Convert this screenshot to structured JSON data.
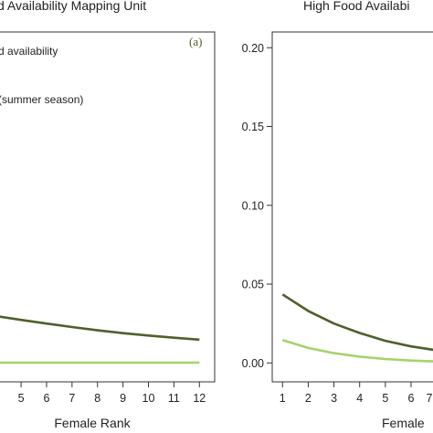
{
  "colors": {
    "dark_green": "#4f5f2c",
    "light_green": "#a6d36a",
    "axis": "#333333"
  },
  "chart_data": [
    {
      "type": "line",
      "title": "d Availability Mapping Unit",
      "panel_label": "(a)",
      "legend": [
        {
          "text": "d availability"
        },
        {
          "text": "(summer season)"
        }
      ],
      "xlabel": "Female Rank",
      "ylabel": "",
      "xlim": [
        4.1,
        12.6
      ],
      "ylim": [
        -0.012,
        0.21
      ],
      "x_ticks": [
        5,
        6,
        7,
        8,
        9,
        10,
        11,
        12
      ],
      "x_tick_labels": [
        "5",
        "6",
        "7",
        "8",
        "9",
        "10",
        "11",
        "12"
      ],
      "x_edge_label": "",
      "y_ticks": [],
      "y_tick_labels": [],
      "grid": false,
      "series": [
        {
          "color_key": "dark_green",
          "x": [
            4.1,
            5,
            6,
            7,
            8,
            9,
            10,
            11,
            12
          ],
          "y": [
            0.0295,
            0.0273,
            0.025,
            0.0228,
            0.0207,
            0.0189,
            0.0174,
            0.016,
            0.0148
          ]
        },
        {
          "color_key": "light_green",
          "x": [
            4.1,
            5,
            6,
            7,
            8,
            9,
            10,
            11,
            12
          ],
          "y": [
            0.0002,
            0.0002,
            0.0002,
            0.0002,
            0.0002,
            0.0002,
            0.0002,
            0.0002,
            0.0002
          ]
        }
      ]
    },
    {
      "type": "line",
      "title": "High Food Availabi",
      "xlabel": "Female",
      "ylabel": "",
      "xlim": [
        0.6,
        7.35
      ],
      "ylim": [
        -0.012,
        0.21
      ],
      "x_ticks": [
        1,
        2,
        3,
        4,
        5,
        6
      ],
      "x_tick_labels": [
        "1",
        "2",
        "3",
        "4",
        "5",
        "6"
      ],
      "x_edge_label": "7",
      "y_ticks": [
        0.0,
        0.05,
        0.1,
        0.15,
        0.2
      ],
      "y_tick_labels": [
        "0.00",
        "0.05",
        "0.10",
        "0.15",
        "0.20"
      ],
      "grid": false,
      "series": [
        {
          "color_key": "dark_green",
          "x": [
            1,
            2,
            3,
            4,
            5,
            6,
            7,
            7.35
          ],
          "y": [
            0.0435,
            0.033,
            0.025,
            0.019,
            0.014,
            0.0105,
            0.008,
            0.0072
          ]
        },
        {
          "color_key": "light_green",
          "x": [
            1,
            2,
            3,
            4,
            5,
            6,
            7,
            7.35
          ],
          "y": [
            0.0145,
            0.0095,
            0.0062,
            0.004,
            0.0025,
            0.0015,
            0.0009,
            0.0007
          ]
        }
      ]
    }
  ]
}
